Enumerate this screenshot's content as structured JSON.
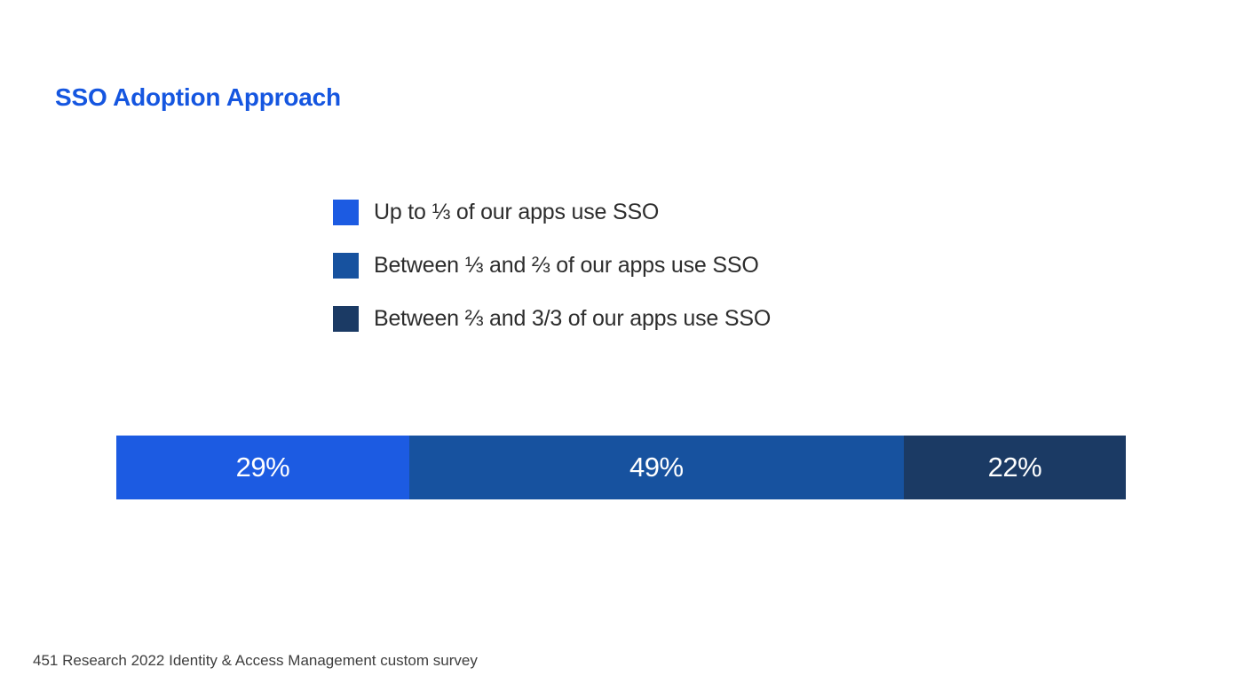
{
  "page": {
    "title": "SSO Adoption Approach",
    "source_note": "451 Research 2022 Identity & Access Management custom survey"
  },
  "colors": {
    "title": "#1556e0",
    "legend_text": "#2d2d2d",
    "bar_label": "#ffffff",
    "footer_text": "#3e3e3e",
    "background": "#ffffff"
  },
  "chart_data": {
    "type": "bar",
    "subtype": "horizontal-stacked-100pct",
    "title": "SSO Adoption Approach",
    "unit": "%",
    "grid": false,
    "axes": "none",
    "legend_position": "above-bar-left",
    "series": [
      {
        "name": "Up to ⅓ of our apps use SSO",
        "value": 29,
        "label": "29%",
        "color": "#1c5be2"
      },
      {
        "name": "Between ⅓ and ⅔ of our apps use SSO",
        "value": 49,
        "label": "49%",
        "color": "#17529f"
      },
      {
        "name": "Between ⅔ and 3/3 of our apps use SSO",
        "value": 22,
        "label": "22%",
        "color": "#1b3a64"
      }
    ],
    "source": "451 Research 2022 Identity & Access Management custom survey"
  }
}
